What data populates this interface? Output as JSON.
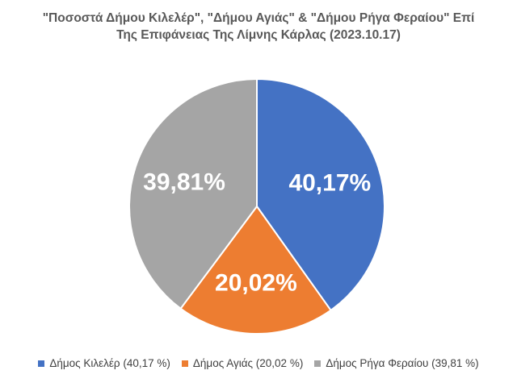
{
  "chart_data": {
    "type": "pie",
    "title_lines": [
      "\"Ποσοστά Δήμου Κιλελέρ\", \"Δήμου Αγιάς\" & \"Δήμου Ρήγα Φεραίου\" Επί",
      "Της Επιφάνειας Της Λίμνης Κάρλας (2023.10.17)"
    ],
    "slices": [
      {
        "value": 40.17,
        "data_label": "40,17%",
        "legend_label": "Δήμος Κιλελέρ (40,17 %)",
        "color": "#4472C4"
      },
      {
        "value": 20.02,
        "data_label": "20,02%",
        "legend_label": "Δήμος Αγιάς (20,02 %)",
        "color": "#ED7D31"
      },
      {
        "value": 39.81,
        "data_label": "39,81%",
        "legend_label": "Δήμος Ρήγα Φεραίου (39,81 %)",
        "color": "#A5A5A5"
      }
    ],
    "legend_position": "bottom",
    "label_color": "#FFFFFF",
    "start_angle": "12 o'clock, clockwise"
  }
}
